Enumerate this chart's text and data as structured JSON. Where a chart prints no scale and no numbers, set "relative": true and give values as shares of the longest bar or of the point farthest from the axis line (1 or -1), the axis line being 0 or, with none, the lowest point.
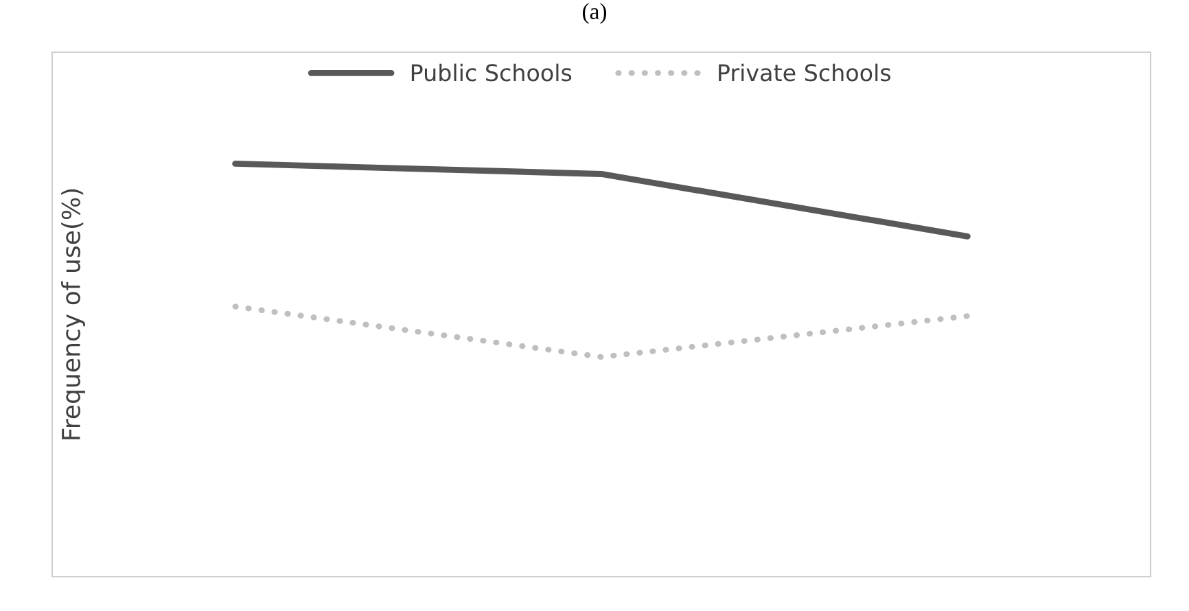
{
  "chart_data": {
    "type": "line",
    "title": "(a)",
    "ylabel": "Frequency of use(%)",
    "relative": true,
    "categories": [
      null,
      null,
      null
    ],
    "legend": "top",
    "series": [
      {
        "name": "Public Schools",
        "color": "#595959",
        "values": [
          1,
          0.975,
          0.824
        ],
        "line_style": "solid"
      },
      {
        "name": "Private Schools",
        "color": "#bfbfbf",
        "values": [
          0.654,
          0.532,
          0.631
        ],
        "line_style": "dotted"
      }
    ]
  }
}
